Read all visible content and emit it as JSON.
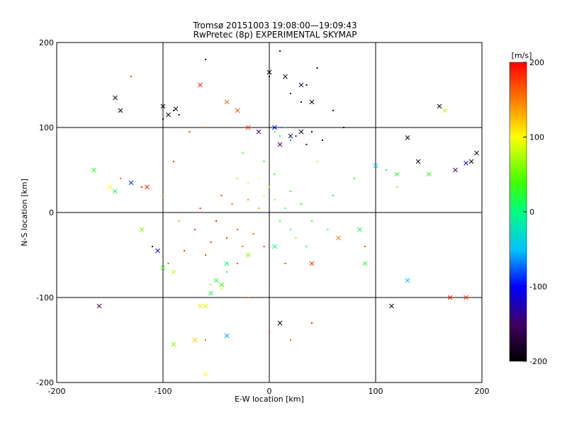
{
  "chart_data": {
    "type": "scatter",
    "title": "Tromsø 20151003 19:08:00—19:09:43",
    "subtitle": "RwPretec (8p) EXPERIMENTAL SKYMAP",
    "xlabel": "E-W location [km]",
    "ylabel": "N-S location [km]",
    "xlim": [
      -200,
      200
    ],
    "ylim": [
      -200,
      200
    ],
    "xticks": [
      -200,
      -100,
      0,
      100,
      200
    ],
    "yticks": [
      -200,
      -100,
      0,
      100,
      200
    ],
    "grid": true,
    "colorbar": {
      "label": "[m/s]",
      "range": [
        -200,
        200
      ],
      "ticks": [
        200,
        100,
        0,
        -100,
        -200
      ],
      "colormap": [
        "#000000",
        "#400060",
        "#0000ff",
        "#00c0ff",
        "#00ff80",
        "#40ff00",
        "#ffff00",
        "#ff8000",
        "#ff0000"
      ]
    },
    "series": [
      {
        "marker": "dot",
        "points": [
          [
            -40,
            -30,
            180
          ],
          [
            -30,
            -20,
            170
          ],
          [
            -50,
            -10,
            190
          ],
          [
            -25,
            -40,
            160
          ],
          [
            -55,
            -35,
            185
          ],
          [
            -35,
            10,
            170
          ],
          [
            -20,
            15,
            150
          ],
          [
            -45,
            20,
            180
          ],
          [
            -60,
            -50,
            175
          ],
          [
            -15,
            -25,
            165
          ],
          [
            -70,
            -20,
            190
          ],
          [
            -80,
            -45,
            185
          ],
          [
            -30,
            -60,
            170
          ],
          [
            -65,
            5,
            180
          ],
          [
            -10,
            5,
            140
          ],
          [
            -5,
            20,
            90
          ],
          [
            5,
            15,
            60
          ],
          [
            10,
            -10,
            30
          ],
          [
            15,
            5,
            10
          ],
          [
            20,
            -20,
            0
          ],
          [
            -10,
            40,
            100
          ],
          [
            -20,
            35,
            110
          ],
          [
            -30,
            40,
            120
          ],
          [
            0,
            30,
            80
          ],
          [
            5,
            45,
            40
          ],
          [
            10,
            90,
            0
          ],
          [
            15,
            100,
            -20
          ],
          [
            5,
            95,
            10
          ],
          [
            20,
            85,
            -60
          ],
          [
            25,
            90,
            -120
          ],
          [
            35,
            80,
            -160
          ],
          [
            40,
            95,
            -180
          ],
          [
            50,
            85,
            -190
          ],
          [
            30,
            130,
            -170
          ],
          [
            20,
            140,
            -150
          ],
          [
            35,
            150,
            -190
          ],
          [
            -90,
            120,
            -190
          ],
          [
            -100,
            110,
            -180
          ],
          [
            -85,
            115,
            -160
          ],
          [
            -60,
            100,
            160
          ],
          [
            -75,
            95,
            180
          ],
          [
            -50,
            -80,
            100
          ],
          [
            -45,
            -90,
            80
          ],
          [
            -55,
            -85,
            60
          ],
          [
            -40,
            -70,
            20
          ],
          [
            20,
            25,
            30
          ],
          [
            30,
            10,
            20
          ],
          [
            40,
            -10,
            40
          ],
          [
            25,
            -30,
            60
          ],
          [
            35,
            -40,
            10
          ],
          [
            60,
            20,
            -10
          ],
          [
            55,
            -20,
            0
          ],
          [
            -110,
            -40,
            -180
          ],
          [
            -120,
            30,
            190
          ],
          [
            -140,
            40,
            170
          ],
          [
            80,
            40,
            30
          ],
          [
            90,
            -40,
            170
          ],
          [
            110,
            50,
            -10
          ],
          [
            120,
            30,
            60
          ],
          [
            -20,
            -100,
            150
          ],
          [
            0,
            -140,
            180
          ],
          [
            20,
            -150,
            170
          ],
          [
            40,
            -130,
            190
          ],
          [
            -60,
            -150,
            160
          ],
          [
            60,
            120,
            -180
          ],
          [
            70,
            100,
            -190
          ],
          [
            -25,
            70,
            40
          ],
          [
            -5,
            60,
            20
          ],
          [
            45,
            60,
            70
          ],
          [
            -90,
            60,
            180
          ],
          [
            -100,
            20,
            150
          ],
          [
            -85,
            -10,
            140
          ],
          [
            -95,
            -60,
            175
          ],
          [
            15,
            -60,
            180
          ],
          [
            -5,
            -40,
            190
          ],
          [
            0,
            160,
            -190
          ],
          [
            -60,
            180,
            -200
          ],
          [
            10,
            190,
            -170
          ],
          [
            45,
            170,
            -200
          ],
          [
            -130,
            160,
            180
          ]
        ]
      },
      {
        "marker": "cross",
        "points": [
          [
            -140,
            120,
            -200
          ],
          [
            -145,
            135,
            -190
          ],
          [
            -100,
            125,
            -200
          ],
          [
            -95,
            115,
            -190
          ],
          [
            -88,
            122,
            -180
          ],
          [
            -65,
            150,
            190
          ],
          [
            -40,
            130,
            160
          ],
          [
            -20,
            100,
            180
          ],
          [
            -10,
            95,
            -150
          ],
          [
            5,
            100,
            -100
          ],
          [
            10,
            80,
            -150
          ],
          [
            20,
            90,
            -170
          ],
          [
            30,
            95,
            -190
          ],
          [
            40,
            130,
            -200
          ],
          [
            15,
            160,
            -190
          ],
          [
            30,
            150,
            -180
          ],
          [
            -165,
            50,
            30
          ],
          [
            -150,
            30,
            100
          ],
          [
            -145,
            25,
            10
          ],
          [
            -130,
            35,
            -90
          ],
          [
            -115,
            30,
            190
          ],
          [
            -120,
            -20,
            60
          ],
          [
            -105,
            -45,
            -120
          ],
          [
            -100,
            -65,
            40
          ],
          [
            -90,
            -70,
            80
          ],
          [
            -50,
            -80,
            20
          ],
          [
            -45,
            -85,
            40
          ],
          [
            -55,
            -95,
            10
          ],
          [
            -60,
            -110,
            80
          ],
          [
            -65,
            -110,
            110
          ],
          [
            -70,
            -150,
            120
          ],
          [
            -40,
            -60,
            0
          ],
          [
            -20,
            -50,
            60
          ],
          [
            5,
            -40,
            10
          ],
          [
            40,
            -60,
            180
          ],
          [
            65,
            -30,
            150
          ],
          [
            85,
            -20,
            20
          ],
          [
            100,
            55,
            -50
          ],
          [
            120,
            45,
            30
          ],
          [
            130,
            88,
            -200
          ],
          [
            140,
            60,
            -200
          ],
          [
            150,
            45,
            30
          ],
          [
            160,
            125,
            -200
          ],
          [
            165,
            120,
            80
          ],
          [
            175,
            50,
            -150
          ],
          [
            185,
            58,
            -120
          ],
          [
            190,
            60,
            -190
          ],
          [
            195,
            70,
            -200
          ],
          [
            185,
            -100,
            180
          ],
          [
            170,
            -100,
            190
          ],
          [
            130,
            -80,
            -50
          ],
          [
            115,
            -110,
            -200
          ],
          [
            -160,
            -110,
            -150
          ],
          [
            -90,
            -155,
            60
          ],
          [
            -40,
            -145,
            -60
          ],
          [
            10,
            -130,
            -200
          ],
          [
            -60,
            -190,
            100
          ],
          [
            0,
            165,
            -200
          ],
          [
            -30,
            120,
            170
          ],
          [
            90,
            -60,
            30
          ]
        ]
      }
    ]
  }
}
